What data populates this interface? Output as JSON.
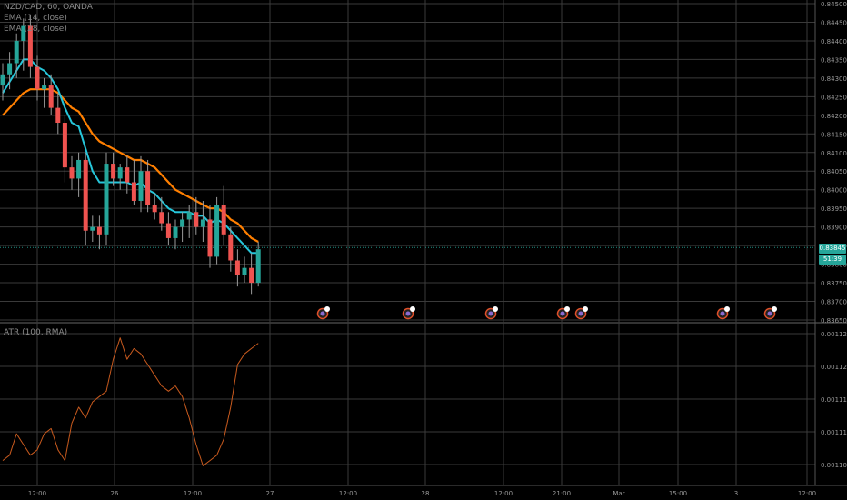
{
  "legend": {
    "symbol": "NZD/CAD, 60, OANDA",
    "ema1": "EMA (14, close)",
    "ema2": "EMA (28, close)",
    "atr": "ATR (100, RMA)"
  },
  "price_tag": {
    "value": "0.83845",
    "countdown": "51:39"
  },
  "colors": {
    "background": "#000000",
    "grid": "#3a3a3a",
    "up": "#26a69a",
    "down": "#ef5350",
    "ema_fast": "#26c6da",
    "ema_slow": "#ff7f00",
    "atr": "#c85a1e",
    "tag_green": "#26a69a"
  },
  "chart_data": [
    {
      "type": "candlestick",
      "title": "NZD/CAD, 60, OANDA",
      "ylim": [
        0.8365,
        0.845
      ],
      "y_ticks": [
        "0.84500",
        "0.84450",
        "0.84400",
        "0.84350",
        "0.84300",
        "0.84250",
        "0.84200",
        "0.84150",
        "0.84100",
        "0.84050",
        "0.84000",
        "0.83950",
        "0.83900",
        "0.83850",
        "0.83800",
        "0.83750",
        "0.83700",
        "0.83650"
      ],
      "x_ticks": [
        "12:00",
        "26",
        "12:00",
        "27",
        "12:00",
        "28",
        "12:00",
        "21:00",
        "Mar",
        "15:00",
        "3",
        "12:00"
      ],
      "candles": [
        [
          0.8428,
          0.8434,
          0.8424,
          0.8431
        ],
        [
          0.8431,
          0.8437,
          0.8427,
          0.8434
        ],
        [
          0.8434,
          0.8442,
          0.843,
          0.844
        ],
        [
          0.844,
          0.8446,
          0.8432,
          0.8444
        ],
        [
          0.8444,
          0.8447,
          0.843,
          0.8433
        ],
        [
          0.8433,
          0.8436,
          0.8424,
          0.8427
        ],
        [
          0.8427,
          0.843,
          0.8422,
          0.8428
        ],
        [
          0.8428,
          0.8431,
          0.842,
          0.8422
        ],
        [
          0.8422,
          0.8426,
          0.8415,
          0.8418
        ],
        [
          0.8418,
          0.842,
          0.8402,
          0.8406
        ],
        [
          0.8406,
          0.8409,
          0.84,
          0.8403
        ],
        [
          0.8403,
          0.841,
          0.8398,
          0.8408
        ],
        [
          0.8408,
          0.841,
          0.8385,
          0.8389
        ],
        [
          0.8389,
          0.8393,
          0.8386,
          0.839
        ],
        [
          0.839,
          0.8393,
          0.8384,
          0.8388
        ],
        [
          0.8388,
          0.841,
          0.8385,
          0.8407
        ],
        [
          0.8407,
          0.841,
          0.8401,
          0.8403
        ],
        [
          0.8403,
          0.8407,
          0.84,
          0.8406
        ],
        [
          0.8406,
          0.8409,
          0.8399,
          0.8402
        ],
        [
          0.8402,
          0.8408,
          0.8396,
          0.8397
        ],
        [
          0.8397,
          0.8409,
          0.8394,
          0.8405
        ],
        [
          0.8405,
          0.8408,
          0.8394,
          0.8396
        ],
        [
          0.8396,
          0.8399,
          0.8392,
          0.8394
        ],
        [
          0.8394,
          0.8398,
          0.8389,
          0.8391
        ],
        [
          0.8391,
          0.8394,
          0.8385,
          0.8387
        ],
        [
          0.8387,
          0.8392,
          0.8384,
          0.839
        ],
        [
          0.839,
          0.8394,
          0.8386,
          0.8392
        ],
        [
          0.8392,
          0.8396,
          0.8387,
          0.8394
        ],
        [
          0.8394,
          0.8398,
          0.8388,
          0.839
        ],
        [
          0.839,
          0.8397,
          0.8386,
          0.8392
        ],
        [
          0.8392,
          0.8396,
          0.8379,
          0.8382
        ],
        [
          0.8382,
          0.8398,
          0.838,
          0.8396
        ],
        [
          0.8396,
          0.8401,
          0.8385,
          0.8388
        ],
        [
          0.8388,
          0.839,
          0.8378,
          0.8381
        ],
        [
          0.8381,
          0.8384,
          0.8374,
          0.8377
        ],
        [
          0.8377,
          0.8382,
          0.8375,
          0.8379
        ],
        [
          0.8379,
          0.8383,
          0.8372,
          0.8375
        ],
        [
          0.8375,
          0.8386,
          0.8374,
          0.8384
        ]
      ],
      "ema_fast": [
        0.8426,
        0.8429,
        0.8432,
        0.8435,
        0.8435,
        0.8433,
        0.8432,
        0.843,
        0.8427,
        0.8422,
        0.8418,
        0.8417,
        0.8411,
        0.8405,
        0.8402,
        0.8402,
        0.8402,
        0.8402,
        0.8402,
        0.8401,
        0.8402,
        0.84,
        0.8399,
        0.8397,
        0.8395,
        0.8394,
        0.8394,
        0.8394,
        0.8393,
        0.8393,
        0.8391,
        0.8392,
        0.8391,
        0.8389,
        0.8387,
        0.8385,
        0.8383,
        0.8383
      ],
      "ema_slow": [
        0.842,
        0.8422,
        0.8424,
        0.8426,
        0.8427,
        0.8427,
        0.8427,
        0.8427,
        0.8426,
        0.8424,
        0.8422,
        0.8421,
        0.8418,
        0.8415,
        0.8413,
        0.8412,
        0.8411,
        0.841,
        0.8409,
        0.8408,
        0.8408,
        0.8407,
        0.8406,
        0.8404,
        0.8402,
        0.84,
        0.8399,
        0.8398,
        0.8397,
        0.8396,
        0.8395,
        0.8395,
        0.8394,
        0.8392,
        0.8391,
        0.8389,
        0.8387,
        0.8386
      ]
    },
    {
      "type": "line",
      "title": "ATR (100, RMA)",
      "y_ticks": [
        "0.00112",
        "0.00112",
        "0.00111",
        "0.00111",
        "0.00110"
      ],
      "values": [
        0.001102,
        0.001103,
        0.001107,
        0.001105,
        0.001103,
        0.001104,
        0.001107,
        0.001108,
        0.001104,
        0.001102,
        0.001109,
        0.001112,
        0.00111,
        0.001113,
        0.001114,
        0.001115,
        0.001121,
        0.001125,
        0.001121,
        0.001123,
        0.001122,
        0.00112,
        0.001118,
        0.001116,
        0.001115,
        0.001116,
        0.001114,
        0.00111,
        0.001105,
        0.001101,
        0.001102,
        0.001103,
        0.001106,
        0.001112,
        0.00112,
        0.001122,
        0.001123,
        0.001124
      ],
      "ylim": [
        0.001098,
        0.001127
      ]
    }
  ]
}
